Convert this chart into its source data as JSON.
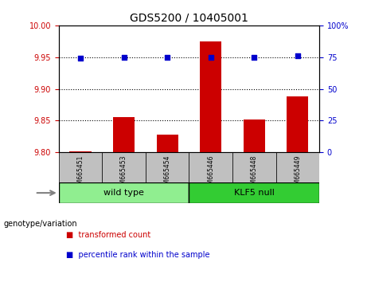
{
  "title": "GDS5200 / 10405001",
  "samples": [
    "GSM665451",
    "GSM665453",
    "GSM665454",
    "GSM665446",
    "GSM665448",
    "GSM665449"
  ],
  "transformed_counts": [
    9.801,
    9.855,
    9.828,
    9.975,
    9.852,
    9.888
  ],
  "percentile_ranks": [
    74,
    75,
    75,
    75,
    75,
    76
  ],
  "groups": [
    {
      "label": "wild type",
      "indices": [
        0,
        1,
        2
      ]
    },
    {
      "label": "KLF5 null",
      "indices": [
        3,
        4,
        5
      ]
    }
  ],
  "bar_color": "#CC0000",
  "dot_color": "#0000CC",
  "left_ylim": [
    9.8,
    10.0
  ],
  "left_yticks": [
    9.8,
    9.85,
    9.9,
    9.95,
    10.0
  ],
  "right_ylim": [
    0,
    100
  ],
  "right_yticks": [
    0,
    25,
    50,
    75,
    100
  ],
  "right_yticklabels": [
    "0",
    "25",
    "50",
    "75",
    "100%"
  ],
  "grid_values": [
    9.85,
    9.9,
    9.95
  ],
  "left_tick_color": "#CC0000",
  "right_tick_color": "#0000CC",
  "genotype_label": "genotype/variation",
  "legend_items": [
    {
      "color": "#CC0000",
      "label": "transformed count"
    },
    {
      "color": "#0000CC",
      "label": "percentile rank within the sample"
    }
  ],
  "group_bg_color": "#C0C0C0",
  "wild_type_bg": "#90EE90",
  "klf5_bg": "#33CC33"
}
